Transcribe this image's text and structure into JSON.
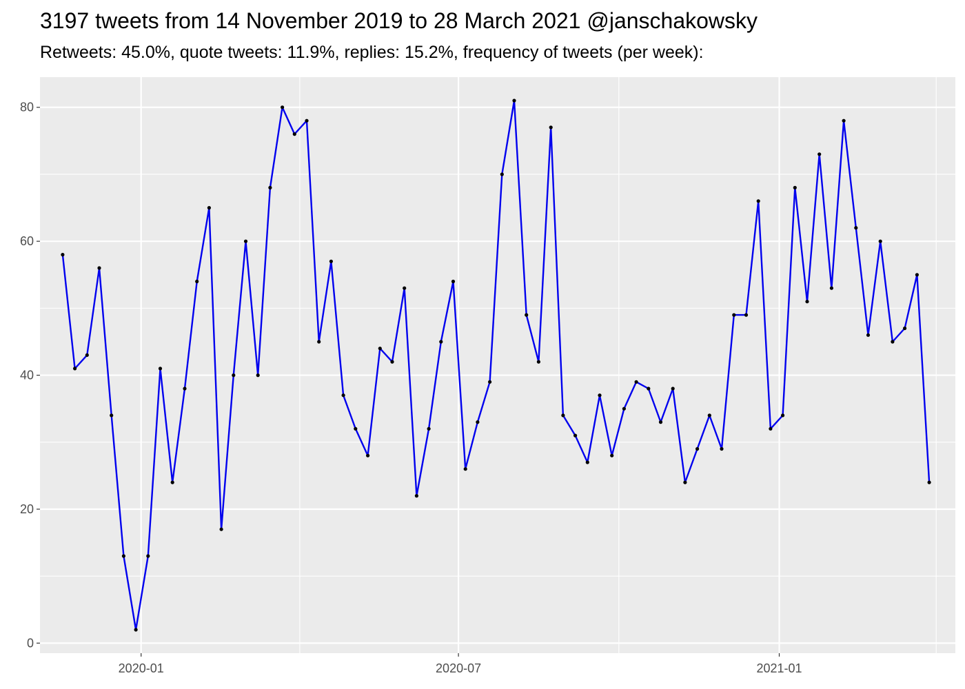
{
  "chart_data": {
    "type": "line",
    "title": "3197 tweets from 14 November 2019 to 28 March 2021 @janschakowsky",
    "subtitle": "Retweets: 45.0%, quote tweets: 11.9%, replies: 15.2%, frequency of tweets (per week):",
    "xlabel": "",
    "ylabel": "",
    "xlim": [
      "2019-11-04",
      "2021-04-12"
    ],
    "ylim": [
      -1.5,
      84.5
    ],
    "grid": true,
    "legend": "none",
    "x_ticks": [
      "2020-01-01",
      "2020-07-01",
      "2021-01-01"
    ],
    "x_tick_labels": [
      "2020-01",
      "2020-07",
      "2021-01"
    ],
    "y_ticks": [
      0,
      20,
      40,
      60,
      80
    ],
    "y_tick_labels": [
      "0",
      "20",
      "40",
      "60",
      "80"
    ],
    "colors": {
      "line": "#0000ee",
      "points": "#000000",
      "panel": "#ebebeb",
      "grid": "#ffffff"
    },
    "x": [
      "2019-11-17",
      "2019-11-24",
      "2019-12-01",
      "2019-12-08",
      "2019-12-15",
      "2019-12-22",
      "2019-12-29",
      "2020-01-05",
      "2020-01-12",
      "2020-01-19",
      "2020-01-26",
      "2020-02-02",
      "2020-02-09",
      "2020-02-16",
      "2020-02-23",
      "2020-03-01",
      "2020-03-08",
      "2020-03-15",
      "2020-03-22",
      "2020-03-29",
      "2020-04-05",
      "2020-04-12",
      "2020-04-19",
      "2020-04-26",
      "2020-05-03",
      "2020-05-10",
      "2020-05-17",
      "2020-05-24",
      "2020-05-31",
      "2020-06-07",
      "2020-06-14",
      "2020-06-21",
      "2020-06-28",
      "2020-07-05",
      "2020-07-12",
      "2020-07-19",
      "2020-07-26",
      "2020-08-02",
      "2020-08-09",
      "2020-08-16",
      "2020-08-23",
      "2020-08-30",
      "2020-09-06",
      "2020-09-13",
      "2020-09-20",
      "2020-09-27",
      "2020-10-04",
      "2020-10-11",
      "2020-10-18",
      "2020-10-25",
      "2020-11-01",
      "2020-11-08",
      "2020-11-15",
      "2020-11-22",
      "2020-11-29",
      "2020-12-06",
      "2020-12-13",
      "2020-12-20",
      "2020-12-27",
      "2021-01-03",
      "2021-01-10",
      "2021-01-17",
      "2021-01-24",
      "2021-01-31",
      "2021-02-07",
      "2021-02-14",
      "2021-02-21",
      "2021-02-28",
      "2021-03-07",
      "2021-03-14",
      "2021-03-21",
      "2021-03-28"
    ],
    "series": [
      {
        "values": [
          58,
          41,
          43,
          56,
          34,
          13,
          2,
          13,
          41,
          24,
          38,
          54,
          65,
          17,
          40,
          60,
          40,
          68,
          80,
          76,
          78,
          45,
          57,
          37,
          32,
          28,
          44,
          42,
          53,
          22,
          32,
          45,
          54,
          26,
          33,
          39,
          70,
          81,
          49,
          42,
          77,
          34,
          31,
          27,
          37,
          28,
          35,
          39,
          38,
          33,
          38,
          24,
          29,
          34,
          29,
          49,
          49,
          66,
          32,
          34,
          68,
          51,
          73,
          53,
          78,
          62,
          46,
          60,
          45,
          47,
          55,
          24
        ]
      }
    ]
  }
}
